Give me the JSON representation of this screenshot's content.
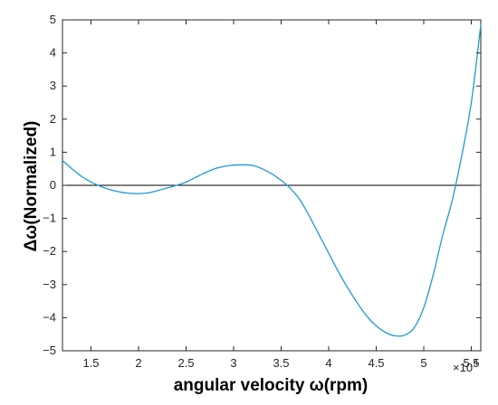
{
  "chart_data": {
    "type": "line",
    "title": "",
    "xlabel": "angular velocity ω(rpm)",
    "ylabel": "Δω(Normalized)",
    "x_exponent_label": "×10",
    "x_exponent_power": "4",
    "xlim": [
      12000,
      56000
    ],
    "ylim": [
      -5,
      5
    ],
    "xticks": [
      {
        "value": 15000,
        "label": "1.5"
      },
      {
        "value": 20000,
        "label": "2"
      },
      {
        "value": 25000,
        "label": "2.5"
      },
      {
        "value": 30000,
        "label": "3"
      },
      {
        "value": 35000,
        "label": "3.5"
      },
      {
        "value": 40000,
        "label": "4"
      },
      {
        "value": 45000,
        "label": "4.5"
      },
      {
        "value": 50000,
        "label": "5"
      },
      {
        "value": 55000,
        "label": "5.5"
      }
    ],
    "yticks": [
      {
        "value": 5,
        "label": "5"
      },
      {
        "value": 4,
        "label": "4"
      },
      {
        "value": 3,
        "label": "3"
      },
      {
        "value": 2,
        "label": "2"
      },
      {
        "value": 1,
        "label": "1"
      },
      {
        "value": 0,
        "label": "0"
      },
      {
        "value": -1,
        "label": "−1"
      },
      {
        "value": -2,
        "label": "−2"
      },
      {
        "value": -3,
        "label": "−3"
      },
      {
        "value": -4,
        "label": "−4"
      },
      {
        "value": -5,
        "label": "−5"
      }
    ],
    "grid": false,
    "reference_line": {
      "y": 0,
      "color": "#000000"
    },
    "series": [
      {
        "color": "#1a9cd6",
        "x": [
          12000,
          13000,
          14000,
          15000,
          16000,
          17000,
          18000,
          19000,
          20000,
          21000,
          22000,
          23000,
          24000,
          25000,
          26000,
          27000,
          28000,
          29000,
          30000,
          31000,
          32000,
          33000,
          34000,
          35000,
          36000,
          37000,
          38000,
          39000,
          40000,
          41000,
          42000,
          43000,
          44000,
          45000,
          46000,
          47000,
          48000,
          49000,
          50000,
          51000,
          52000,
          53000,
          54000,
          55000,
          56000
        ],
        "y": [
          0.75,
          0.5,
          0.27,
          0.1,
          -0.03,
          -0.13,
          -0.2,
          -0.24,
          -0.25,
          -0.23,
          -0.16,
          -0.08,
          0.0,
          0.1,
          0.24,
          0.38,
          0.5,
          0.57,
          0.61,
          0.62,
          0.6,
          0.5,
          0.35,
          0.15,
          -0.1,
          -0.45,
          -0.95,
          -1.5,
          -2.05,
          -2.6,
          -3.1,
          -3.55,
          -3.95,
          -4.25,
          -4.45,
          -4.55,
          -4.53,
          -4.3,
          -3.7,
          -2.7,
          -1.5,
          -0.45,
          0.9,
          2.5,
          4.85
        ]
      }
    ]
  }
}
